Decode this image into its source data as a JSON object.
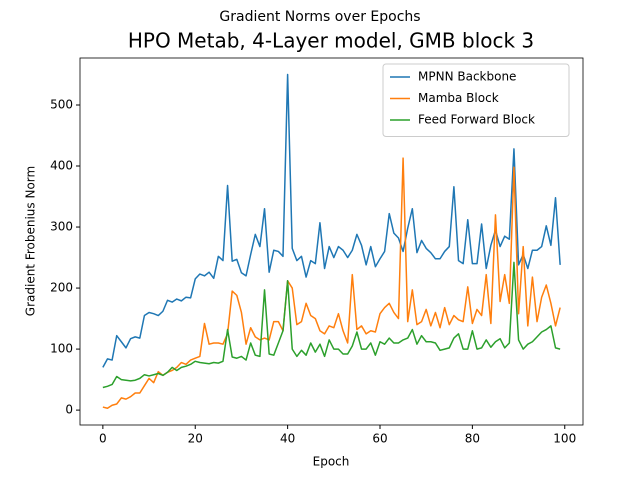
{
  "chart_data": {
    "type": "line",
    "title": "Gradient Norms over Epochs",
    "subtitle": "HPO Metab, 4-Layer model, GMB block 3",
    "xlabel": "Epoch",
    "ylabel": "Gradient Frobenius Norm",
    "x": [
      0,
      1,
      2,
      3,
      4,
      5,
      6,
      7,
      8,
      9,
      10,
      11,
      12,
      13,
      14,
      15,
      16,
      17,
      18,
      19,
      20,
      21,
      22,
      23,
      24,
      25,
      26,
      27,
      28,
      29,
      30,
      31,
      32,
      33,
      34,
      35,
      36,
      37,
      38,
      39,
      40,
      41,
      42,
      43,
      44,
      45,
      46,
      47,
      48,
      49,
      50,
      51,
      52,
      53,
      54,
      55,
      56,
      57,
      58,
      59,
      60,
      61,
      62,
      63,
      64,
      65,
      66,
      67,
      68,
      69,
      70,
      71,
      72,
      73,
      74,
      75,
      76,
      77,
      78,
      79,
      80,
      81,
      82,
      83,
      84,
      85,
      86,
      87,
      88,
      89,
      90,
      91,
      92,
      93,
      94,
      95,
      96,
      97,
      98,
      99
    ],
    "series": [
      {
        "name": "MPNN Backbone",
        "color": "#1f77b4",
        "values": [
          70,
          84,
          82,
          122,
          112,
          102,
          117,
          120,
          118,
          155,
          160,
          158,
          155,
          162,
          180,
          177,
          182,
          179,
          185,
          184,
          215,
          223,
          220,
          226,
          216,
          252,
          245,
          368,
          244,
          247,
          225,
          220,
          255,
          288,
          268,
          330,
          226,
          262,
          260,
          252,
          550,
          265,
          245,
          252,
          218,
          245,
          240,
          307,
          232,
          268,
          250,
          268,
          262,
          250,
          262,
          288,
          270,
          238,
          268,
          235,
          248,
          260,
          322,
          290,
          282,
          260,
          298,
          330,
          258,
          278,
          265,
          258,
          248,
          248,
          260,
          268,
          366,
          245,
          240,
          312,
          240,
          240,
          305,
          232,
          270,
          295,
          268,
          285,
          280,
          428,
          238,
          255,
          232,
          262,
          262,
          268,
          302,
          270,
          348,
          238
        ]
      },
      {
        "name": "Mamba Block",
        "color": "#ff7f0e",
        "values": [
          5,
          3,
          8,
          10,
          20,
          18,
          22,
          28,
          28,
          40,
          52,
          45,
          63,
          57,
          62,
          65,
          70,
          78,
          75,
          82,
          85,
          88,
          142,
          108,
          110,
          110,
          108,
          125,
          195,
          188,
          160,
          108,
          135,
          120,
          115,
          118,
          115,
          145,
          145,
          130,
          212,
          200,
          140,
          145,
          175,
          155,
          150,
          130,
          125,
          138,
          135,
          158,
          130,
          110,
          222,
          132,
          138,
          125,
          130,
          128,
          158,
          168,
          175,
          160,
          150,
          413,
          145,
          197,
          140,
          145,
          165,
          138,
          160,
          135,
          168,
          140,
          155,
          148,
          145,
          202,
          142,
          165,
          155,
          222,
          142,
          320,
          178,
          222,
          175,
          398,
          158,
          268,
          138,
          218,
          145,
          185,
          205,
          175,
          138,
          168
        ]
      },
      {
        "name": "Feed Forward Block",
        "color": "#2ca02c",
        "values": [
          37,
          39,
          42,
          55,
          50,
          49,
          48,
          49,
          52,
          58,
          56,
          58,
          60,
          57,
          62,
          70,
          65,
          70,
          72,
          75,
          80,
          78,
          77,
          76,
          78,
          77,
          80,
          132,
          87,
          85,
          88,
          82,
          110,
          90,
          88,
          197,
          92,
          90,
          110,
          130,
          212,
          100,
          88,
          98,
          90,
          110,
          95,
          108,
          88,
          115,
          100,
          100,
          92,
          92,
          105,
          128,
          100,
          100,
          110,
          90,
          112,
          108,
          118,
          110,
          110,
          115,
          118,
          132,
          108,
          122,
          112,
          112,
          110,
          98,
          100,
          102,
          118,
          125,
          100,
          100,
          130,
          100,
          102,
          115,
          103,
          112,
          117,
          102,
          110,
          242,
          115,
          100,
          108,
          112,
          120,
          128,
          132,
          138,
          102,
          100
        ]
      }
    ],
    "xlim": [
      -4.95,
      103.95
    ],
    "xticks": [
      0,
      20,
      40,
      60,
      80,
      100
    ],
    "ylim": [
      -24.4,
      577
    ],
    "yticks": [
      0,
      100,
      200,
      300,
      400,
      500
    ],
    "legend": "upper right"
  }
}
